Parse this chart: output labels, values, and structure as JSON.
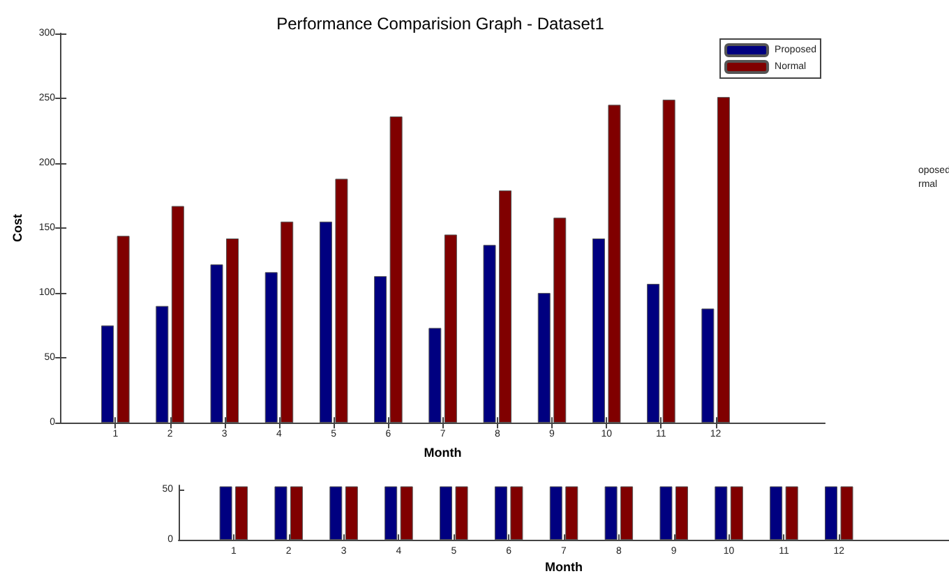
{
  "chart_data": [
    {
      "type": "bar",
      "title": "Performance Comparision Graph - Dataset1",
      "xlabel": "Month",
      "ylabel": "Cost",
      "x": [
        1,
        2,
        3,
        4,
        5,
        6,
        7,
        8,
        9,
        10,
        11,
        12
      ],
      "series": [
        {
          "name": "Proposed",
          "color": "#000080",
          "values": [
            75,
            90,
            122,
            116,
            155,
            113,
            73,
            137,
            100,
            142,
            107,
            88
          ]
        },
        {
          "name": "Normal",
          "color": "#800000",
          "values": [
            144,
            167,
            142,
            155,
            188,
            236,
            145,
            179,
            158,
            245,
            249,
            251
          ]
        }
      ],
      "xlim": [
        0,
        14
      ],
      "xticks": [
        1,
        2,
        3,
        4,
        5,
        6,
        7,
        8,
        9,
        10,
        11,
        12
      ],
      "ylim": [
        0,
        300
      ],
      "yticks": [
        0,
        50,
        100,
        150,
        200,
        250,
        300
      ],
      "legend": "top right",
      "grid": false,
      "annotations": [
        "oposed",
        "rmal"
      ]
    },
    {
      "type": "bar",
      "xlabel": "Month",
      "x": [
        1,
        2,
        3,
        4,
        5,
        6,
        7,
        8,
        9,
        10,
        11,
        12
      ],
      "series": [
        {
          "color": "#000080",
          "values": [
            53,
            53,
            53,
            53,
            53,
            53,
            53,
            53,
            53,
            53,
            53,
            53
          ]
        },
        {
          "color": "#800000",
          "values": [
            53,
            53,
            53,
            53,
            53,
            53,
            53,
            53,
            53,
            53,
            53,
            53
          ]
        }
      ],
      "xlim": [
        0,
        14
      ],
      "xticks": [
        1,
        2,
        3,
        4,
        5,
        6,
        7,
        8,
        9,
        10,
        11,
        12
      ],
      "ylim": [
        0,
        54
      ],
      "yticks": [
        0,
        50
      ],
      "grid": false
    }
  ]
}
